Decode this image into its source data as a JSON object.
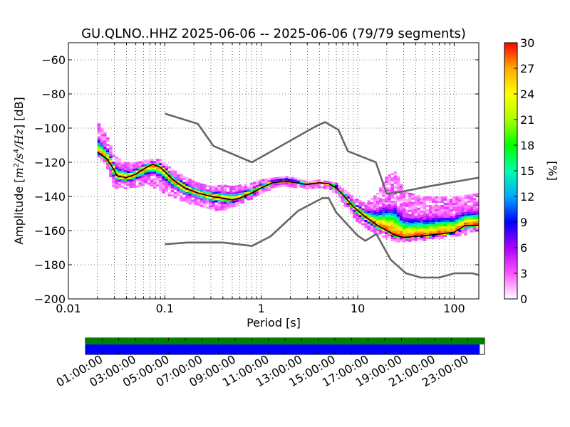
{
  "chart_data": {
    "type": "heatmap",
    "title": "GU.QLNO..HHZ   2025-06-06 -- 2025-06-06  (79/79 segments)",
    "xlabel": "Period [s]",
    "ylabel_prefix": "Amplitude [",
    "ylabel_unit_base": "m",
    "ylabel_unit_exp": "2",
    "ylabel_unit_sep": "/",
    "ylabel_unit_base2": "s",
    "ylabel_unit_exp2": "4",
    "ylabel_unit_tail": "/Hz",
    "ylabel_suffix": "] [dB]",
    "colorbar_label": "[%]",
    "x_scale": "log",
    "xlim": [
      0.01,
      180
    ],
    "ylim": [
      -200,
      -50
    ],
    "xticks": [
      {
        "value": 0.01,
        "label": "0.01"
      },
      {
        "value": 0.1,
        "label": "0.1"
      },
      {
        "value": 1,
        "label": "1"
      },
      {
        "value": 10,
        "label": "10"
      },
      {
        "value": 100,
        "label": "100"
      }
    ],
    "yticks": [
      {
        "value": -60,
        "label": "−60"
      },
      {
        "value": -80,
        "label": "−80"
      },
      {
        "value": -100,
        "label": "−100"
      },
      {
        "value": -120,
        "label": "−120"
      },
      {
        "value": -140,
        "label": "−140"
      },
      {
        "value": -160,
        "label": "−160"
      },
      {
        "value": -180,
        "label": "−180"
      },
      {
        "value": -200,
        "label": "−200"
      }
    ],
    "colorbar_range": [
      0,
      30
    ],
    "colorbar_ticks": [
      {
        "value": 0,
        "label": "0"
      },
      {
        "value": 3,
        "label": "3"
      },
      {
        "value": 6,
        "label": "6"
      },
      {
        "value": 9,
        "label": "9"
      },
      {
        "value": 12,
        "label": "12"
      },
      {
        "value": 15,
        "label": "15"
      },
      {
        "value": 18,
        "label": "18"
      },
      {
        "value": 21,
        "label": "21"
      },
      {
        "value": 24,
        "label": "24"
      },
      {
        "value": 27,
        "label": "27"
      },
      {
        "value": 30,
        "label": "30"
      }
    ],
    "colormap": [
      "#ffffff",
      "#ff55ff",
      "#aa00ff",
      "#0000ff",
      "#00aaff",
      "#00ffaa",
      "#00ff00",
      "#aaff00",
      "#ffff00",
      "#ffaa00",
      "#ff0000"
    ],
    "grid": true,
    "high_noise_model": {
      "color": "#666666",
      "points": [
        [
          0.1,
          -91.5
        ],
        [
          0.22,
          -97.5
        ],
        [
          0.32,
          -110.5
        ],
        [
          0.8,
          -120
        ],
        [
          3.8,
          -98.5
        ],
        [
          4.6,
          -96.5
        ],
        [
          6.3,
          -101
        ],
        [
          7.9,
          -113.5
        ],
        [
          15.4,
          -120
        ],
        [
          20,
          -138.5
        ],
        [
          30,
          -137
        ],
        [
          50,
          -134.5
        ],
        [
          100,
          -131.5
        ],
        [
          180,
          -129
        ]
      ]
    },
    "low_noise_model": {
      "color": "#666666",
      "points": [
        [
          0.1,
          -168
        ],
        [
          0.17,
          -167
        ],
        [
          0.4,
          -167
        ],
        [
          0.8,
          -169
        ],
        [
          1.24,
          -163.5
        ],
        [
          2.4,
          -148.5
        ],
        [
          4.3,
          -141
        ],
        [
          5,
          -141
        ],
        [
          6,
          -149.5
        ],
        [
          10,
          -163
        ],
        [
          12,
          -166
        ],
        [
          15.6,
          -162
        ],
        [
          21.9,
          -177
        ],
        [
          31.6,
          -185
        ],
        [
          45,
          -187.5
        ],
        [
          70,
          -187.5
        ],
        [
          101,
          -185
        ],
        [
          154,
          -185
        ],
        [
          180,
          -186
        ]
      ]
    },
    "mean_curve": {
      "color": "#000000",
      "points": [
        [
          0.02,
          -114
        ],
        [
          0.025,
          -118
        ],
        [
          0.028,
          -122
        ],
        [
          0.032,
          -128
        ],
        [
          0.04,
          -129
        ],
        [
          0.05,
          -127
        ],
        [
          0.06,
          -124
        ],
        [
          0.075,
          -121
        ],
        [
          0.09,
          -123
        ],
        [
          0.12,
          -130
        ],
        [
          0.16,
          -135
        ],
        [
          0.22,
          -138
        ],
        [
          0.3,
          -140
        ],
        [
          0.4,
          -141
        ],
        [
          0.5,
          -142
        ],
        [
          0.6,
          -141
        ],
        [
          0.8,
          -138
        ],
        [
          1,
          -135
        ],
        [
          1.3,
          -132
        ],
        [
          1.8,
          -131
        ],
        [
          2.3,
          -132
        ],
        [
          3,
          -133
        ],
        [
          4,
          -132
        ],
        [
          5,
          -132.5
        ],
        [
          6,
          -135
        ],
        [
          7,
          -139
        ],
        [
          9,
          -146
        ],
        [
          12,
          -152
        ],
        [
          16,
          -157
        ],
        [
          20,
          -160
        ],
        [
          25,
          -163
        ],
        [
          30,
          -164
        ],
        [
          50,
          -163
        ],
        [
          100,
          -161
        ],
        [
          130,
          -157
        ],
        [
          180,
          -157
        ]
      ]
    },
    "spread": {
      "period": [
        0.02,
        0.025,
        0.03,
        0.04,
        0.05,
        0.07,
        0.09,
        0.12,
        0.16,
        0.2,
        0.3,
        0.4,
        0.5,
        0.6,
        0.8,
        1,
        1.3,
        1.8,
        2.3,
        3,
        4,
        5,
        6,
        7,
        9,
        12,
        16,
        20,
        25,
        30,
        50,
        100,
        180
      ],
      "lower": [
        -116,
        -122,
        -135,
        -135,
        -134,
        -133,
        -136,
        -140,
        -143,
        -144,
        -147,
        -148,
        -146,
        -144,
        -141,
        -138,
        -135,
        -134,
        -134,
        -135,
        -134,
        -135,
        -138,
        -143,
        -152,
        -158,
        -162,
        -164,
        -166,
        -166,
        -165,
        -163,
        -160
      ],
      "upper": [
        -96,
        -104,
        -116,
        -120,
        -120,
        -118,
        -118,
        -124,
        -128,
        -131,
        -134,
        -133,
        -134,
        -133,
        -132,
        -130,
        -129,
        -128,
        -129,
        -131,
        -130,
        -131,
        -132,
        -135,
        -140,
        -144,
        -138,
        -128,
        -125,
        -137,
        -140,
        -140,
        -138
      ]
    }
  },
  "timeline": {
    "labels": [
      "01:00:00",
      "03:00:00",
      "05:00:00",
      "07:00:00",
      "09:00:00",
      "11:00:00",
      "13:00:00",
      "15:00:00",
      "17:00:00",
      "19:00:00",
      "21:00:00",
      "23:00:00"
    ],
    "label_hours": [
      1,
      3,
      5,
      7,
      9,
      11,
      13,
      15,
      17,
      19,
      21,
      23
    ],
    "used_color": "#008000",
    "data_color": "#0000ff",
    "data_end_fraction": 0.988,
    "used_end_fraction": 1.0
  }
}
